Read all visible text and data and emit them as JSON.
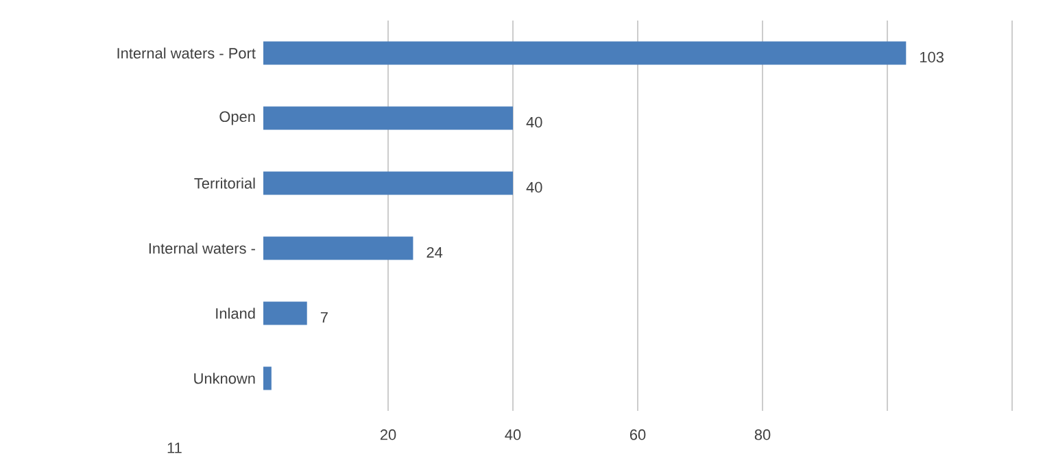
{
  "chart_data": {
    "type": "bar",
    "orientation": "horizontal",
    "categories": [
      "Internal waters - Port",
      "Open",
      "Territorial",
      "Internal waters -",
      "Inland",
      "Unknown"
    ],
    "values": [
      103,
      40,
      40,
      24,
      7,
      1.3
    ],
    "value_labels": [
      "103",
      "40",
      "40",
      "24",
      "7",
      null
    ],
    "color": "#4a7ebb",
    "xlim": [
      0,
      120
    ],
    "xticks": [
      20,
      40,
      60,
      80,
      {
        "value": 100,
        "label": null
      },
      {
        "value": 120,
        "label": null
      }
    ],
    "grid": "x",
    "annotations": [
      "11"
    ]
  }
}
